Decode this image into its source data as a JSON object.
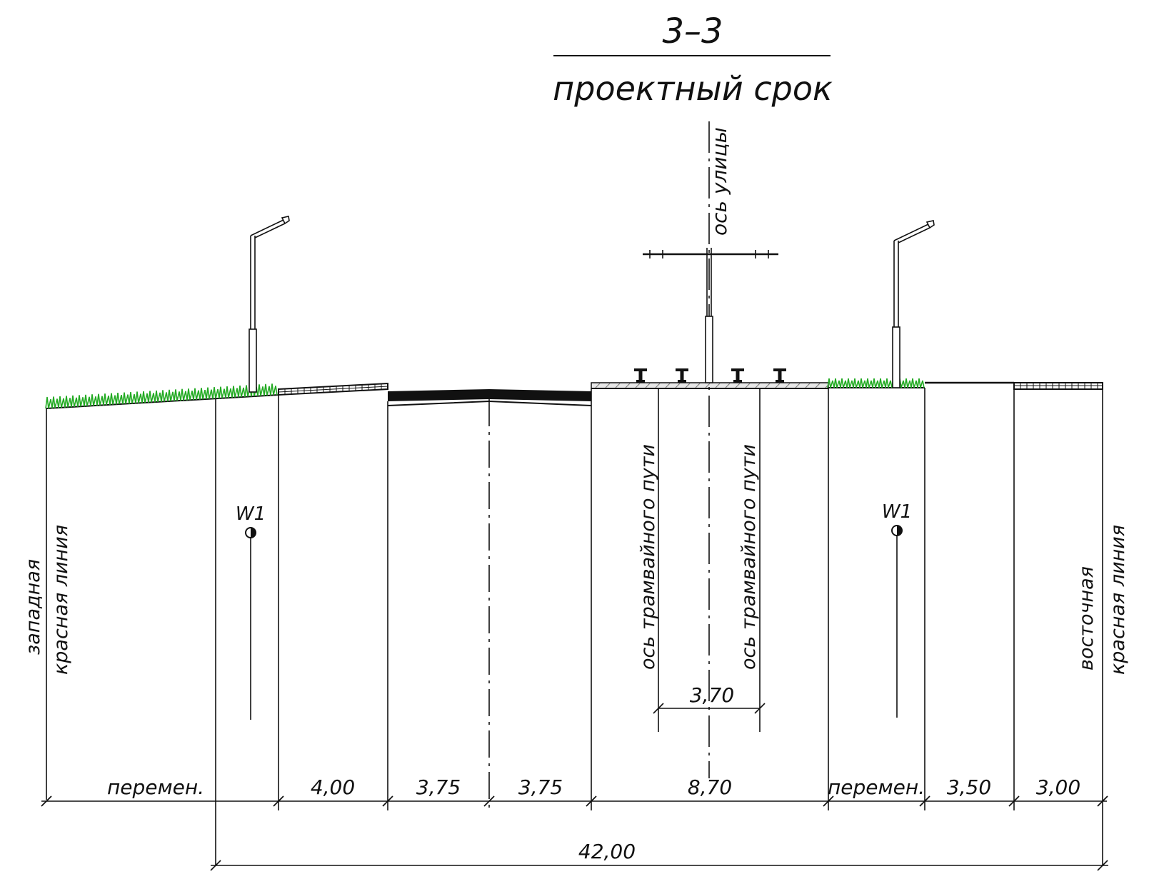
{
  "title": {
    "section": "3–3",
    "subtitle": "проектный срок"
  },
  "labels": {
    "street_axis": "ось улицы",
    "tram_axis_left": "ось трамвайного пути",
    "tram_axis_right": "ось трамвайного пути",
    "west_line_1": "западная",
    "west_line_2": "красная линия",
    "east_line_1": "восточная",
    "east_line_2": "красная линия",
    "drain_left": "W1",
    "drain_right": "W1"
  },
  "dimensions": {
    "segments": [
      "перемен.",
      "4,00",
      "3,75",
      "3,75",
      "8,70",
      "перемен.",
      "3,50",
      "3,00"
    ],
    "tram_gauge": "3,70",
    "total": "42,00"
  },
  "colors": {
    "line": "#111111",
    "grass": "#22aa22"
  }
}
